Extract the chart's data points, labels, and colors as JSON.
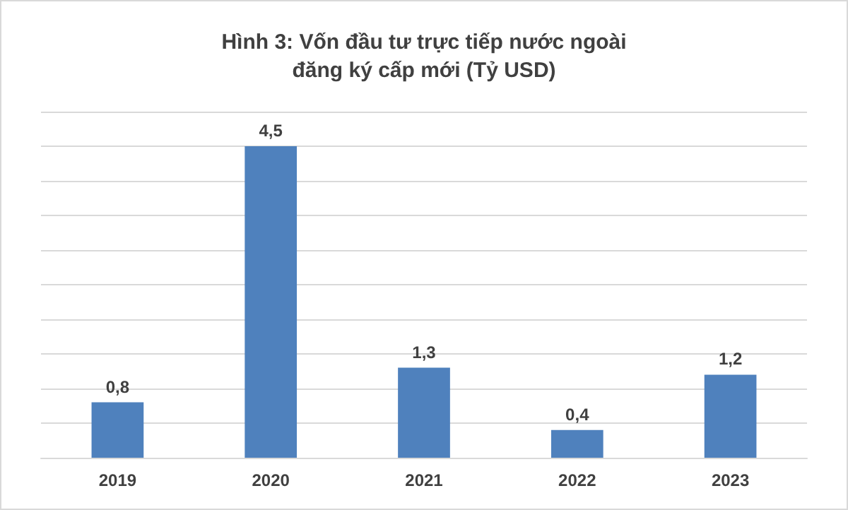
{
  "chart_data": {
    "type": "bar",
    "title": "Hình 3: Vốn đầu tư trực tiếp nước ngoài\nđăng ký cấp mới (Tỷ USD)",
    "categories": [
      "2019",
      "2020",
      "2021",
      "2022",
      "2023"
    ],
    "values": [
      0.8,
      4.5,
      1.3,
      0.4,
      1.2
    ],
    "value_labels": [
      "0,8",
      "4,5",
      "1,3",
      "0,4",
      "1,2"
    ],
    "color": "#4f81bd",
    "ylim": [
      0,
      5
    ],
    "yticks": [
      {
        "value": 0,
        "label": null
      },
      {
        "value": 0.5,
        "label": null
      },
      {
        "value": 1,
        "label": null
      },
      {
        "value": 1.5,
        "label": null
      },
      {
        "value": 2,
        "label": null
      },
      {
        "value": 2.5,
        "label": null
      },
      {
        "value": 3,
        "label": null
      },
      {
        "value": 3.5,
        "label": null
      },
      {
        "value": 4,
        "label": null
      },
      {
        "value": 4.5,
        "label": null
      },
      {
        "value": 5,
        "label": null
      }
    ],
    "tick_labels": "x",
    "grid": "y"
  }
}
